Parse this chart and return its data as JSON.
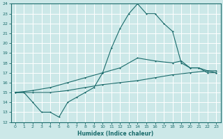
{
  "xlabel": "Humidex (Indice chaleur)",
  "bg_color": "#cce8e8",
  "grid_color": "#aacccc",
  "line_color": "#1a6b6b",
  "xlim": [
    -0.5,
    23.5
  ],
  "ylim": [
    12,
    24
  ],
  "xticks": [
    0,
    1,
    2,
    3,
    4,
    5,
    6,
    7,
    8,
    9,
    10,
    11,
    12,
    13,
    14,
    15,
    16,
    17,
    18,
    19,
    20,
    21,
    22,
    23
  ],
  "yticks": [
    12,
    13,
    14,
    15,
    16,
    17,
    18,
    19,
    20,
    21,
    22,
    23,
    24
  ],
  "line1_x": [
    0,
    1,
    2,
    3,
    4,
    5,
    6,
    7,
    8,
    9,
    10,
    11,
    12,
    13,
    14,
    15,
    16,
    17,
    18,
    19,
    20,
    21,
    22,
    23
  ],
  "line1_y": [
    15,
    15,
    14,
    13,
    13,
    12.5,
    14,
    14.5,
    15,
    15.5,
    17,
    19.5,
    21.5,
    23,
    24,
    23,
    23,
    22,
    21.2,
    18,
    17.5,
    17.5,
    17,
    17
  ],
  "line2_x": [
    0,
    2,
    4,
    6,
    8,
    10,
    12,
    14,
    16,
    18,
    19,
    20,
    21,
    22,
    23
  ],
  "line2_y": [
    15,
    15.2,
    15.5,
    16,
    16.5,
    17,
    17.5,
    18.5,
    18.2,
    18,
    18.2,
    17.5,
    17.5,
    17.2,
    17
  ],
  "line3_x": [
    0,
    2,
    4,
    6,
    8,
    10,
    12,
    14,
    16,
    18,
    20,
    22,
    23
  ],
  "line3_y": [
    15,
    15,
    15,
    15.2,
    15.5,
    15.8,
    16,
    16.2,
    16.5,
    16.8,
    17,
    17.2,
    17.2
  ]
}
